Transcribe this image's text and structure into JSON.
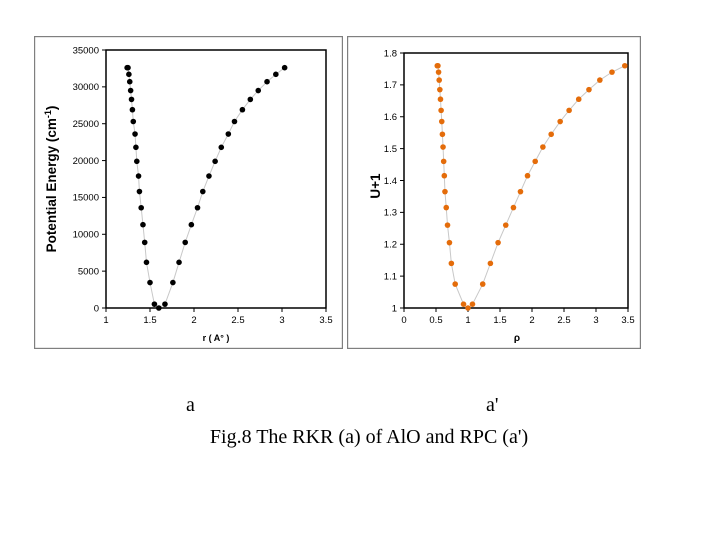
{
  "figure": {
    "label_a": "a",
    "label_b": "a'",
    "caption": "Fig.8  The RKR (a) of AlO and RPC (a')"
  },
  "chart_data": [
    {
      "type": "scatter",
      "title": "",
      "xlabel": "r ( A° )",
      "ylabel": "Potential Energy (cm",
      "ylabel_sup": "-1",
      "ylabel_tail": ")",
      "xlim": [
        1,
        3.5
      ],
      "ylim": [
        0,
        35000
      ],
      "xticks": [
        "1",
        "1.5",
        "2",
        "2.5",
        "3",
        "3.5"
      ],
      "yticks": [
        "0",
        "5000",
        "10000",
        "15000",
        "20000",
        "25000",
        "30000",
        "35000"
      ],
      "marker_color": "#000000",
      "grid": false,
      "legend": "none",
      "series": [
        {
          "x": [
            1.6,
            1.55,
            1.67,
            1.5,
            1.76,
            1.46,
            1.83,
            1.44,
            1.9,
            1.42,
            1.97,
            1.4,
            2.04,
            1.38,
            2.1,
            1.37,
            2.17,
            1.35,
            2.24,
            1.34,
            2.31,
            1.33,
            2.39,
            1.31,
            2.46,
            1.3,
            2.55,
            1.29,
            2.64,
            1.28,
            2.73,
            1.27,
            2.83,
            1.26,
            2.93,
            1.25,
            3.03,
            1.24
          ],
          "y": [
            0,
            520,
            520,
            3450,
            3450,
            6200,
            6200,
            8900,
            8900,
            11300,
            11300,
            13600,
            13600,
            15800,
            15800,
            17900,
            17900,
            19900,
            19900,
            21800,
            21800,
            23600,
            23600,
            25300,
            25300,
            26900,
            26900,
            28300,
            28300,
            29500,
            29500,
            30700,
            30700,
            31700,
            31700,
            32600,
            32600,
            32600
          ]
        }
      ]
    },
    {
      "type": "scatter",
      "title": "",
      "xlabel": "ρ",
      "ylabel": "U+1",
      "xlim": [
        0,
        3.5
      ],
      "ylim": [
        1,
        1.8
      ],
      "xticks": [
        "0",
        "0.5",
        "1",
        "1.5",
        "2",
        "2.5",
        "3",
        "3.5"
      ],
      "yticks": [
        "1",
        "1.1",
        "1.2",
        "1.3",
        "1.4",
        "1.5",
        "1.6",
        "1.7",
        "1.8"
      ],
      "marker_color": "#e46c0a",
      "grid": false,
      "legend": "none",
      "series": [
        {
          "x": [
            1.0,
            0.93,
            1.07,
            0.8,
            1.23,
            0.74,
            1.35,
            0.71,
            1.47,
            0.68,
            1.59,
            0.66,
            1.71,
            0.64,
            1.82,
            0.63,
            1.93,
            0.62,
            2.05,
            0.61,
            2.17,
            0.6,
            2.3,
            0.59,
            2.44,
            0.58,
            2.58,
            0.57,
            2.73,
            0.56,
            2.89,
            0.55,
            3.06,
            0.54,
            3.25,
            0.53,
            3.45,
            0.52
          ],
          "y": [
            1.0,
            1.012,
            1.012,
            1.075,
            1.075,
            1.14,
            1.14,
            1.205,
            1.205,
            1.26,
            1.26,
            1.315,
            1.315,
            1.365,
            1.365,
            1.415,
            1.415,
            1.46,
            1.46,
            1.505,
            1.505,
            1.545,
            1.545,
            1.585,
            1.585,
            1.62,
            1.62,
            1.655,
            1.655,
            1.685,
            1.685,
            1.715,
            1.715,
            1.74,
            1.74,
            1.76,
            1.76,
            1.76
          ]
        }
      ]
    }
  ]
}
